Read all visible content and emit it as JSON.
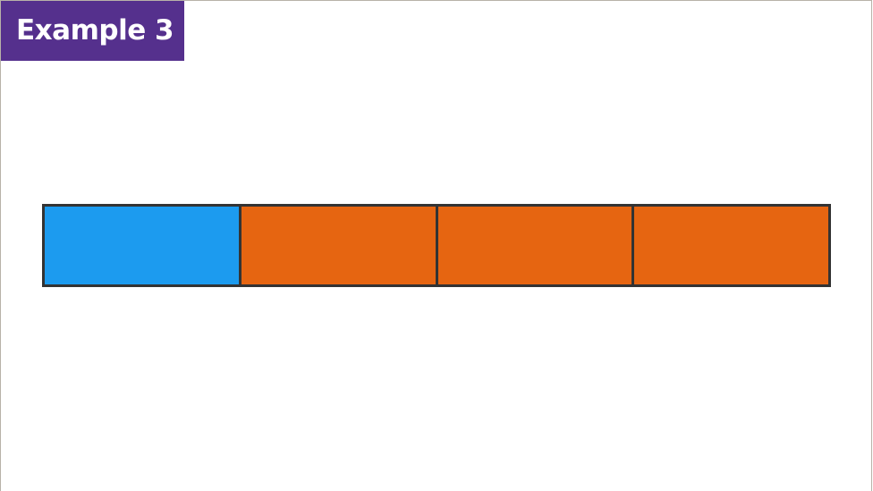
{
  "title": "Example 3",
  "colors": {
    "badge": "#55308d",
    "shaded": "#1c9bef",
    "unshaded": "#e66511",
    "outline": "#333333"
  },
  "bar": {
    "parts": 4,
    "segments": [
      {
        "color": "#1c9bef"
      },
      {
        "color": "#e66511"
      },
      {
        "color": "#e66511"
      },
      {
        "color": "#e66511"
      }
    ]
  }
}
